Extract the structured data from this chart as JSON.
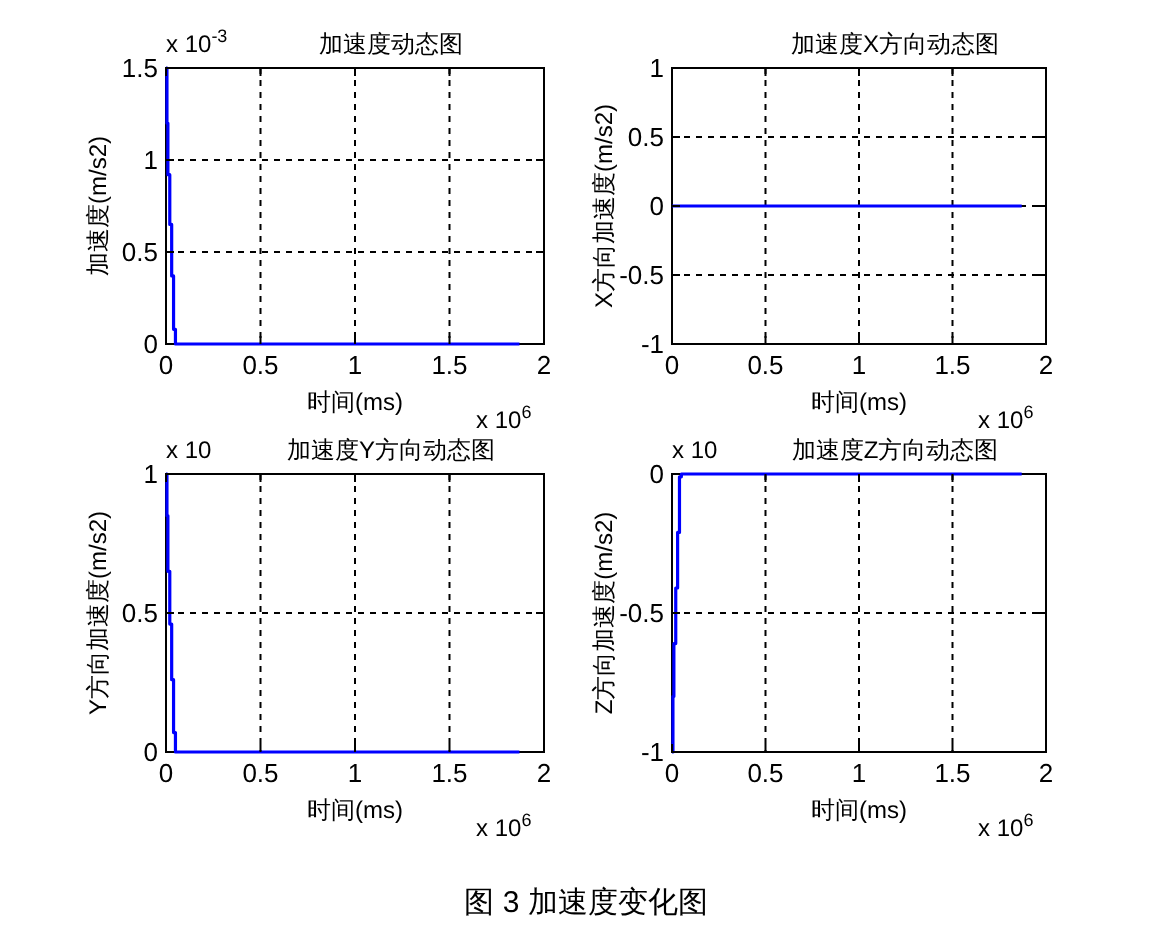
{
  "chart_data": [
    {
      "type": "step",
      "title": "加速度动态图",
      "xlabel": "时间(ms)",
      "ylabel": "加速度(m/s2)",
      "x": [
        0,
        0.005,
        0.01,
        0.02,
        0.03,
        0.04,
        0.05,
        1.87
      ],
      "series": [
        {
          "color": "#0000ff",
          "values": [
            1.5,
            1.2,
            0.92,
            0.65,
            0.37,
            0.08,
            0,
            0
          ]
        }
      ],
      "xlim": [
        0,
        2
      ],
      "xticks": [
        0,
        0.5,
        1,
        1.5,
        2
      ],
      "ylim": [
        0,
        1.5
      ],
      "yticks": [
        0,
        0.5,
        1,
        1.5
      ],
      "grid": true,
      "annotations": [
        "x 10$^{-3}$",
        "x 10$^{6}$"
      ]
    },
    {
      "type": "step",
      "title": "加速度X方向动态图",
      "xlabel": "时间(ms)",
      "ylabel": "X方向加速度(m/s2)",
      "x": [
        0,
        1.87
      ],
      "series": [
        {
          "color": "#0000ff",
          "values": [
            0,
            0
          ]
        }
      ],
      "xlim": [
        0,
        2
      ],
      "xticks": [
        0,
        0.5,
        1,
        1.5,
        2
      ],
      "ylim": [
        -1,
        1
      ],
      "yticks": [
        -1,
        -0.5,
        0,
        0.5,
        1
      ],
      "grid": true,
      "annotations": [
        "x 10$^{6}$"
      ]
    },
    {
      "type": "step",
      "title": "加速度Y方向动态图",
      "xlabel": "时间(ms)",
      "ylabel": "Y方向加速度(m/s2)",
      "x": [
        0,
        0.005,
        0.01,
        0.02,
        0.03,
        0.04,
        0.05,
        1.87
      ],
      "series": [
        {
          "color": "#0000ff",
          "values": [
            1,
            0.85,
            0.65,
            0.46,
            0.26,
            0.07,
            0,
            0
          ]
        }
      ],
      "xlim": [
        0,
        2
      ],
      "xticks": [
        0,
        0.5,
        1,
        1.5,
        2
      ],
      "ylim": [
        0,
        1
      ],
      "yticks": [
        0,
        0.5,
        1
      ],
      "grid": true,
      "annotations": [
        "x 10",
        "x 10$^{6}$"
      ]
    },
    {
      "type": "step",
      "title": "加速度Z方向动态图",
      "xlabel": "时间(ms)",
      "ylabel": "Z方向加速度(m/s2)",
      "x": [
        0,
        0.005,
        0.01,
        0.02,
        0.03,
        0.04,
        0.05,
        1.87
      ],
      "series": [
        {
          "color": "#0000ff",
          "values": [
            -1,
            -0.8,
            -0.61,
            -0.41,
            -0.21,
            -0.01,
            0,
            0
          ]
        }
      ],
      "xlim": [
        0,
        2
      ],
      "xticks": [
        0,
        0.5,
        1,
        1.5,
        2
      ],
      "ylim": [
        -1,
        0
      ],
      "yticks": [
        -1,
        -0.5,
        0
      ],
      "grid": true,
      "annotations": [
        "x 10",
        "x 10$^{6}$"
      ]
    },
    {
      "type": "other",
      "title": "图 3 加速度变化图"
    }
  ]
}
